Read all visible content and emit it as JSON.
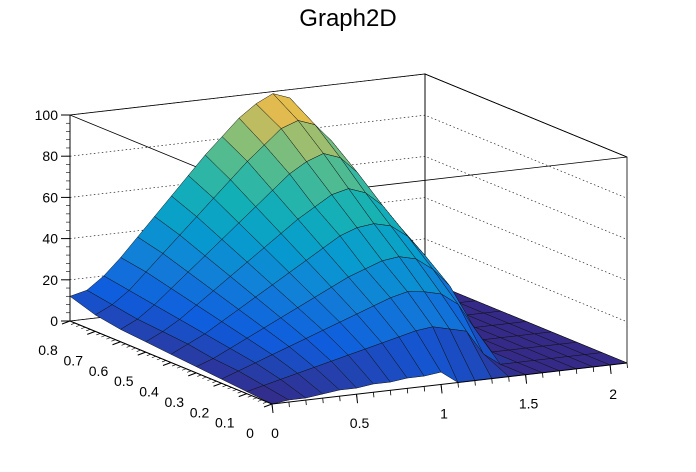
{
  "chart_data": {
    "type": "surface3d",
    "title": "Graph2D",
    "xlabel": "",
    "ylabel": "",
    "zlabel": "",
    "xlim": [
      0,
      2.1
    ],
    "ylim": [
      0,
      0.8
    ],
    "zlim": [
      0,
      100
    ],
    "x_ticks": [
      "0",
      "0.5",
      "1",
      "1.5",
      "2"
    ],
    "y_ticks": [
      "0",
      "0.1",
      "0.2",
      "0.3",
      "0.4",
      "0.5",
      "0.6",
      "0.7",
      "0.8"
    ],
    "z_ticks": [
      "0",
      "20",
      "40",
      "60",
      "80",
      "100"
    ],
    "grid": true,
    "grid_x": [
      0,
      0.1,
      0.2,
      0.3,
      0.4,
      0.5,
      0.6,
      0.7,
      0.8,
      0.9,
      1.0,
      1.1,
      1.2,
      1.3,
      1.4,
      1.5,
      1.6,
      1.7,
      1.8,
      1.9,
      2.0,
      2.1
    ],
    "grid_y": [
      0,
      0.1,
      0.2,
      0.3,
      0.4,
      0.5,
      0.6,
      0.7,
      0.8
    ],
    "z_values": [
      [
        0,
        1,
        1,
        2,
        3,
        3,
        4,
        4,
        5,
        5,
        6,
        0,
        0,
        0,
        0,
        0,
        0,
        0,
        0,
        0,
        0,
        0
      ],
      [
        1,
        3,
        5,
        7,
        9,
        11,
        13,
        15,
        17,
        19,
        21,
        22,
        20,
        18,
        6,
        0,
        0,
        0,
        0,
        0,
        0,
        0
      ],
      [
        2,
        5,
        8,
        11,
        14,
        17,
        20,
        23,
        26,
        29,
        32,
        34,
        33,
        31,
        25,
        12,
        0,
        0,
        0,
        0,
        0,
        0
      ],
      [
        3,
        6,
        10,
        14,
        18,
        22,
        26,
        30,
        34,
        38,
        41,
        44,
        45,
        43,
        37,
        28,
        0,
        0,
        0,
        0,
        0,
        0
      ],
      [
        4,
        8,
        12,
        17,
        22,
        27,
        32,
        37,
        42,
        47,
        52,
        55,
        56,
        54,
        48,
        38,
        24,
        0,
        0,
        0,
        0,
        0
      ],
      [
        5,
        9,
        14,
        20,
        26,
        32,
        38,
        44,
        50,
        56,
        61,
        66,
        68,
        65,
        58,
        47,
        33,
        12,
        0,
        0,
        0,
        0
      ],
      [
        6,
        10,
        16,
        23,
        30,
        37,
        44,
        51,
        58,
        65,
        72,
        77,
        80,
        77,
        69,
        56,
        40,
        20,
        0,
        0,
        0,
        0
      ],
      [
        8,
        12,
        18,
        26,
        34,
        42,
        50,
        58,
        66,
        74,
        81,
        88,
        91,
        88,
        79,
        64,
        46,
        25,
        0,
        0,
        0,
        0
      ],
      [
        12,
        14,
        20,
        28,
        37,
        46,
        55,
        64,
        73,
        81,
        89,
        95,
        99,
        96,
        86,
        70,
        50,
        28,
        0,
        0,
        0,
        0
      ]
    ]
  }
}
